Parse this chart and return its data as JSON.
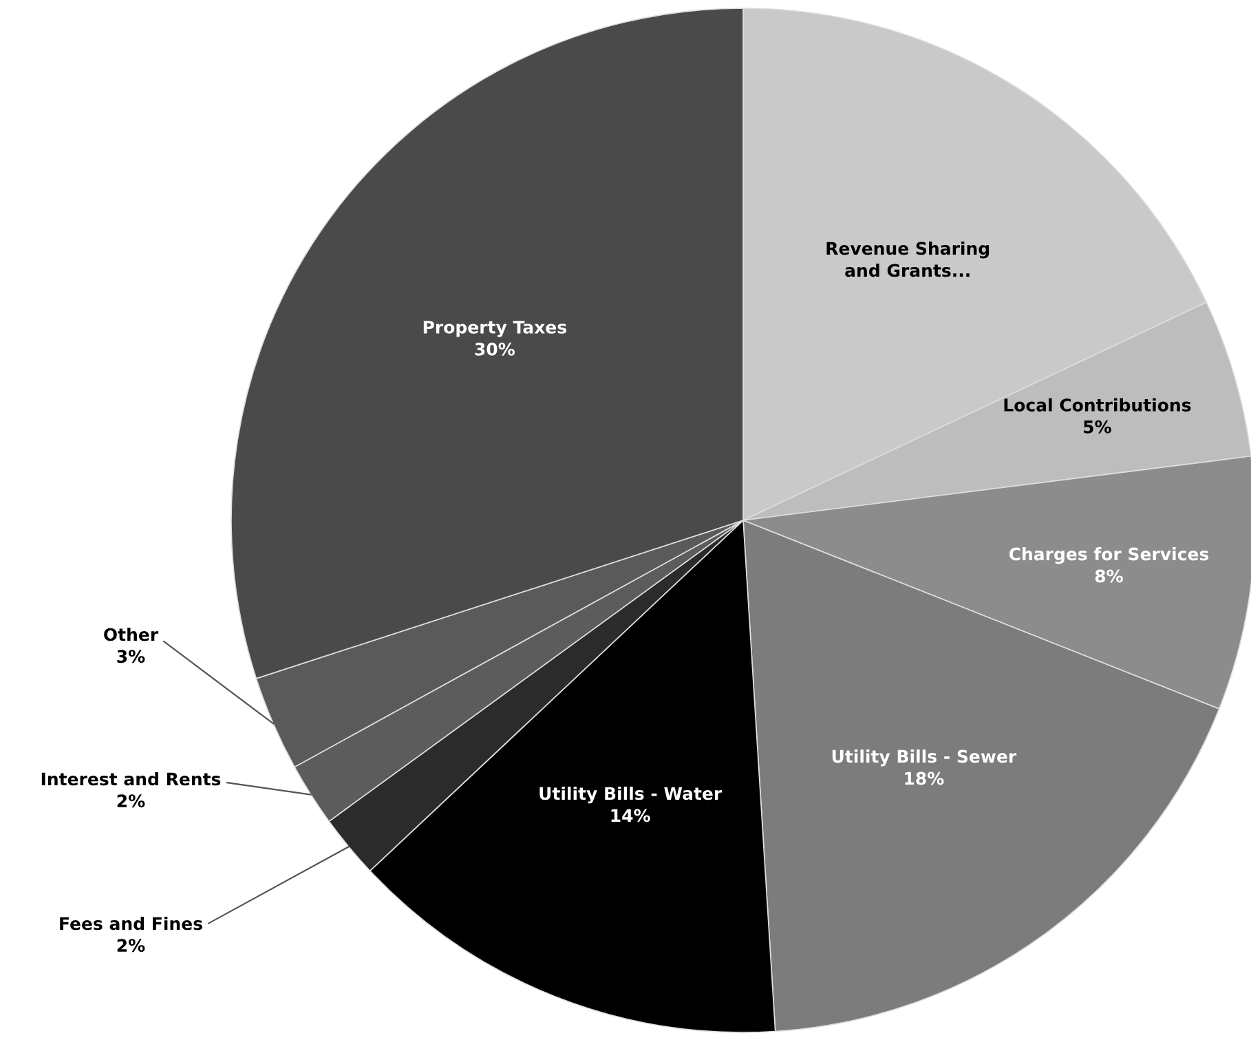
{
  "chart_data": {
    "type": "pie",
    "categories": [
      "Revenue Sharing and Grants...",
      "Local Contributions",
      "Charges for Services",
      "Utility Bills - Sewer",
      "Utility Bills - Water",
      "Fees and Fines",
      "Interest and Rents",
      "Other",
      "Property Taxes"
    ],
    "values": [
      18,
      5,
      8,
      18,
      14,
      2,
      2,
      3,
      30
    ],
    "value_labels": [
      null,
      "5%",
      "8%",
      "18%",
      "14%",
      "2%",
      "2%",
      "3%",
      "30%"
    ],
    "colors": [
      "#c9c9c9",
      "#bdbdbd",
      "#8c8c8c",
      "#7c7c7c",
      "#000000",
      "#2b2b2b",
      "#5c5c5c",
      "#5a5a5a",
      "#4a4a4a"
    ]
  }
}
